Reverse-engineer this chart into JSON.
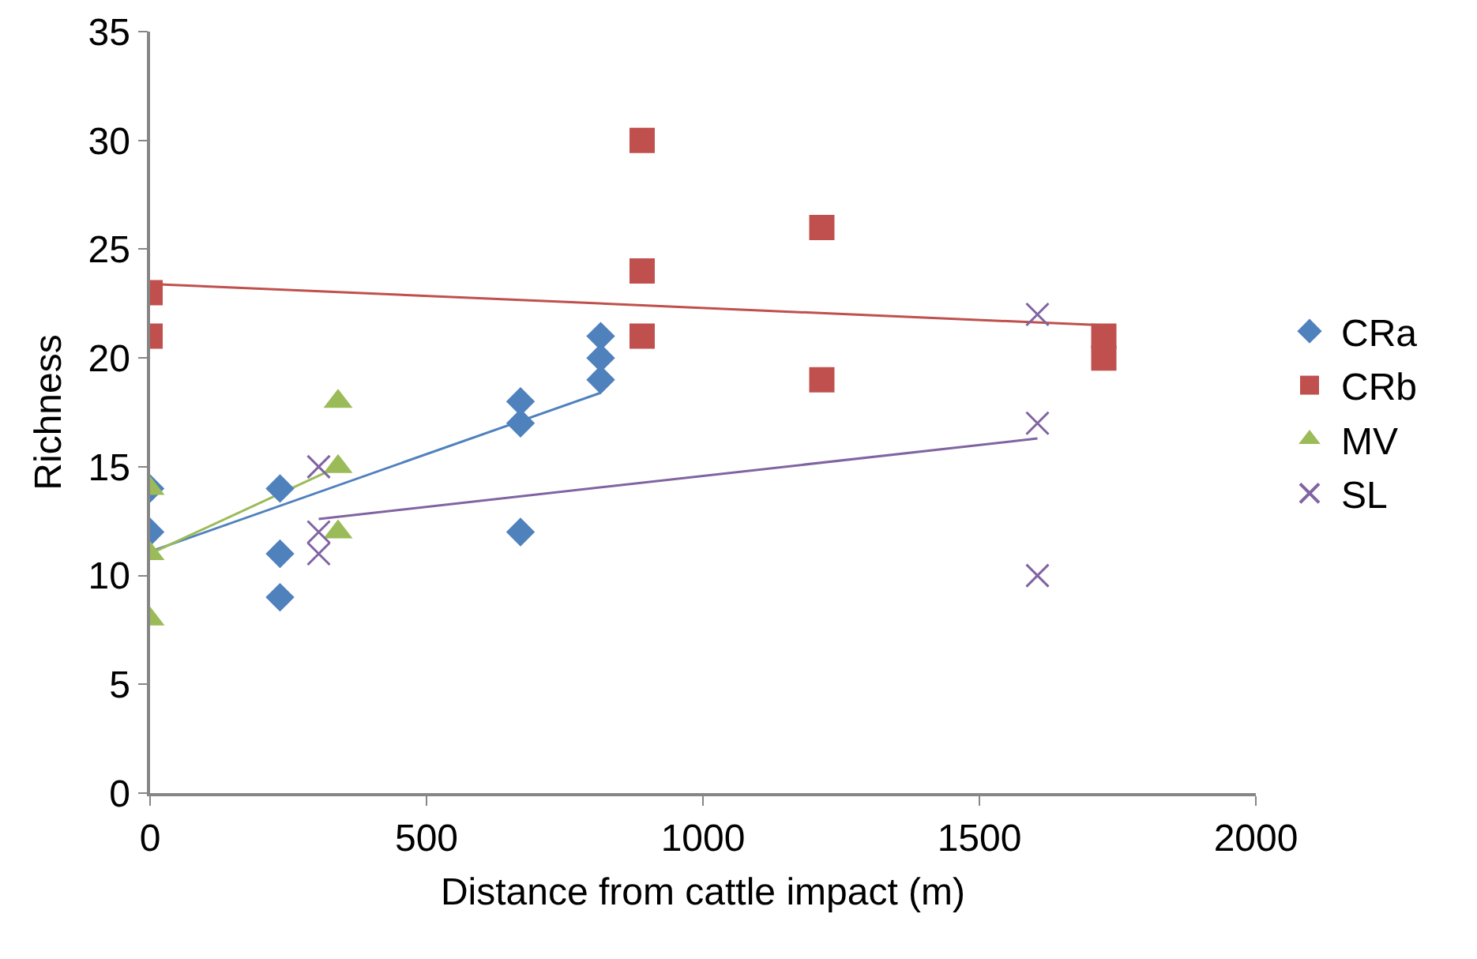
{
  "chart_data": {
    "type": "scatter",
    "xlabel": "Distance from cattle impact (m)",
    "ylabel": "Richness",
    "xlim": [
      0,
      2000
    ],
    "xticks": [
      0,
      500,
      1000,
      1500,
      2000
    ],
    "ylim": [
      0,
      35
    ],
    "yticks": [
      0,
      5,
      10,
      15,
      20,
      25,
      30,
      35
    ],
    "grid": false,
    "legend": "right",
    "series": [
      {
        "name": "CRa",
        "color": "#4f81bd",
        "marker": "diamond",
        "x": [
          0,
          0,
          235,
          235,
          235,
          670,
          670,
          670,
          815,
          815,
          815
        ],
        "values": [
          14,
          12,
          14,
          11,
          9,
          18,
          17,
          12,
          21,
          20,
          19
        ]
      },
      {
        "name": "CRb",
        "color": "#c0504d",
        "marker": "square",
        "x": [
          0,
          0,
          890,
          890,
          890,
          1215,
          1215,
          1725,
          1725
        ],
        "values": [
          23,
          21,
          30,
          24,
          21,
          26,
          19,
          21,
          20
        ]
      },
      {
        "name": "MV",
        "color": "#9bbb59",
        "marker": "triangle",
        "x": [
          0,
          0,
          0,
          340,
          340,
          340
        ],
        "values": [
          14,
          11,
          8,
          18,
          15,
          12
        ]
      },
      {
        "name": "SL",
        "color": "#8064a2",
        "marker": "cross",
        "x": [
          305,
          305,
          305,
          1605,
          1605,
          1605
        ],
        "values": [
          15,
          12,
          11,
          22,
          17,
          10
        ]
      },
      {
        "type": "line",
        "color": "#4f81bd",
        "x": [
          0,
          815
        ],
        "values": [
          11.1,
          18.4
        ]
      },
      {
        "type": "line",
        "color": "#c0504d",
        "x": [
          0,
          1725
        ],
        "values": [
          23.4,
          21.5
        ]
      },
      {
        "type": "line",
        "color": "#9bbb59",
        "x": [
          0,
          340
        ],
        "values": [
          11,
          15
        ]
      },
      {
        "type": "line",
        "color": "#8064a2",
        "x": [
          305,
          1605
        ],
        "values": [
          12.6,
          16.3
        ]
      }
    ]
  }
}
